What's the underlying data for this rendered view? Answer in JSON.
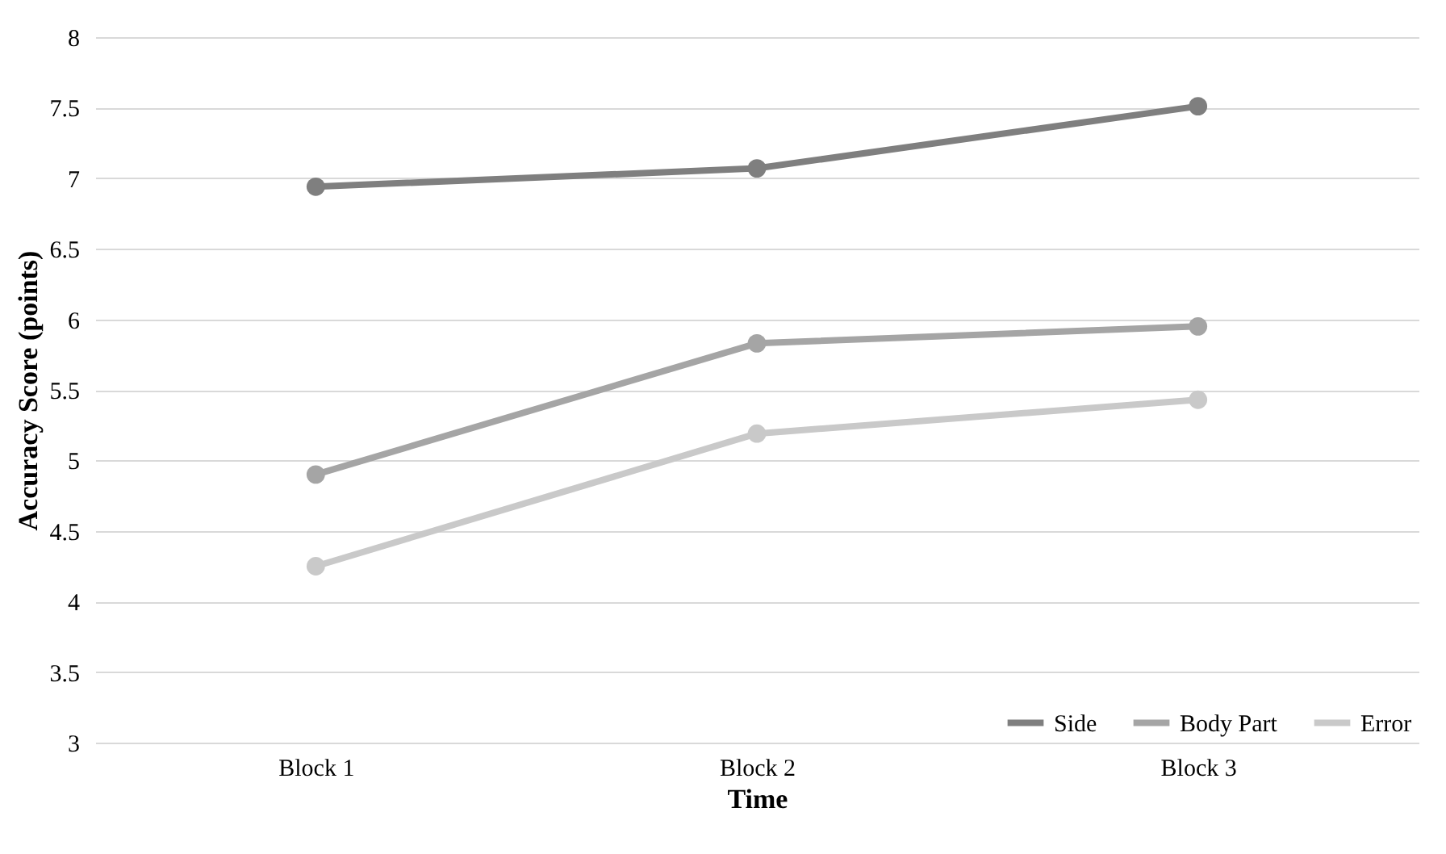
{
  "chart_data": {
    "type": "line",
    "xlabel": "Time",
    "ylabel": "Accuracy Score (points)",
    "categories": [
      "Block 1",
      "Block 2",
      "Block 3"
    ],
    "series": [
      {
        "name": "Side",
        "color": "#7f7f7f",
        "values": [
          6.94,
          7.07,
          7.51
        ]
      },
      {
        "name": "Body Part",
        "color": "#a5a5a5",
        "values": [
          4.9,
          5.83,
          5.95
        ]
      },
      {
        "name": "Error",
        "color": "#c9c9c9",
        "values": [
          4.25,
          5.19,
          5.43
        ]
      }
    ],
    "ylim": [
      3,
      8
    ],
    "yticks": [
      3,
      3.5,
      4,
      4.5,
      5,
      5.5,
      6,
      6.5,
      7,
      7.5,
      8
    ],
    "grid": "y",
    "legend": "bottom right",
    "marker": "circle",
    "line_style": "solid"
  }
}
